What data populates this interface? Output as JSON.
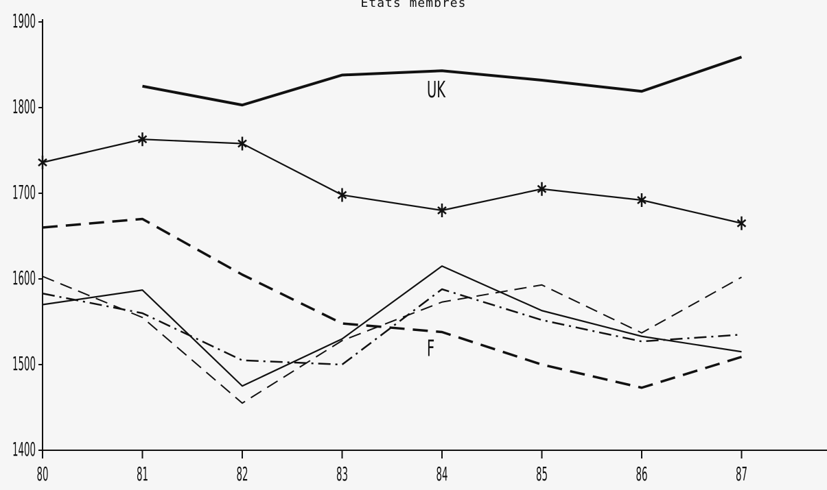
{
  "chart_data": {
    "type": "line",
    "title": "Etats membres",
    "xlabel": "",
    "ylabel": "",
    "x": [
      "80",
      "81",
      "82",
      "83",
      "84",
      "85",
      "86",
      "87"
    ],
    "ylim": [
      1400,
      1900
    ],
    "yticks": [
      1400,
      1500,
      1600,
      1700,
      1800,
      1900
    ],
    "grid": false,
    "series": [
      {
        "style": "thick-solid",
        "values": [
          null,
          1825,
          1803,
          1838,
          1843,
          1832,
          1819,
          1859
        ]
      },
      {
        "style": "solid-star-markers",
        "values": [
          1736,
          1763,
          1758,
          1698,
          1680,
          1705,
          1692,
          1665
        ]
      },
      {
        "style": "thick-dashed",
        "values": [
          1660,
          1670,
          1605,
          1548,
          1538,
          1500,
          1473,
          1509
        ]
      },
      {
        "style": "solid",
        "values": [
          1570,
          1587,
          1475,
          1530,
          1615,
          1563,
          1533,
          1515
        ]
      },
      {
        "style": "thin-dashed",
        "values": [
          1603,
          1555,
          1455,
          1528,
          1573,
          1593,
          1537,
          1602
        ]
      },
      {
        "style": "dash-dot",
        "values": [
          1583,
          1560,
          1505,
          1500,
          1588,
          1552,
          1527,
          1535
        ]
      }
    ],
    "annotations": [
      {
        "text": "UK",
        "x": "84",
        "y": 1812
      },
      {
        "text": "F",
        "x": "84",
        "y": 1510
      }
    ]
  }
}
